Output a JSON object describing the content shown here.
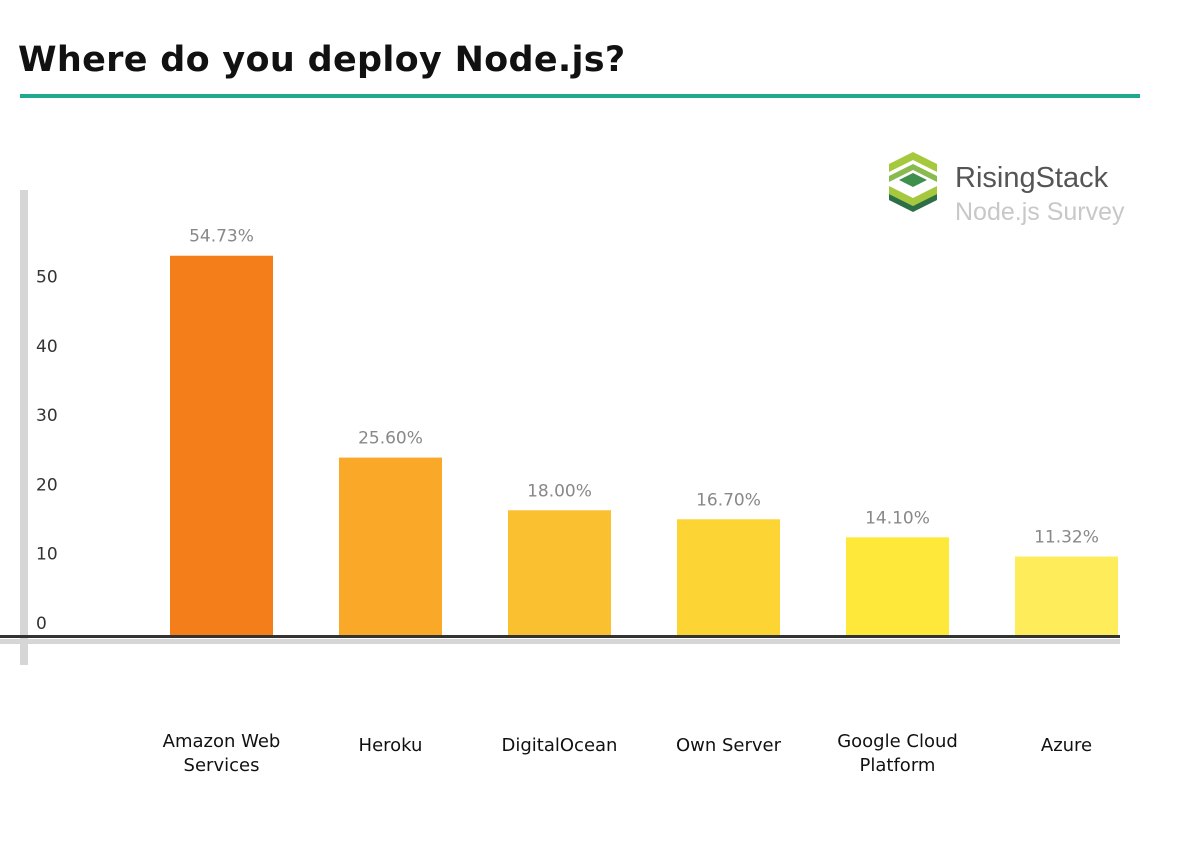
{
  "title": "Where do you deploy Node.js?",
  "logo": {
    "name": "RisingStack",
    "subtitle": "Node.js Survey"
  },
  "colors": {
    "accent_rule": "#1fa98f",
    "axis": "#333333",
    "axis_shadow": "#d6d6d6",
    "label": "#888888"
  },
  "chart_data": {
    "type": "bar",
    "title": "Where do you deploy Node.js?",
    "categories": [
      "Amazon Web Services",
      "Heroku",
      "DigitalOcean",
      "Own Server",
      "Google Cloud Platform",
      "Azure"
    ],
    "category_lines": [
      [
        "Amazon Web",
        "Services"
      ],
      [
        "Heroku"
      ],
      [
        "DigitalOcean"
      ],
      [
        "Own Server"
      ],
      [
        "Google Cloud",
        "Platform"
      ],
      [
        "Azure"
      ]
    ],
    "values": [
      54.73,
      25.6,
      18.0,
      16.7,
      14.1,
      11.32
    ],
    "data_labels": [
      "54.73%",
      "25.60%",
      "18.00%",
      "16.70%",
      "14.10%",
      "11.32%"
    ],
    "bar_colors": [
      "#f47f1a",
      "#f9a828",
      "#fac030",
      "#fcd535",
      "#fee93a",
      "#feec5a"
    ],
    "yticks": [
      0,
      10,
      20,
      30,
      40,
      50
    ],
    "ylim": [
      0,
      60
    ],
    "grid": false,
    "legend": "none",
    "xlabel": "",
    "ylabel": ""
  }
}
